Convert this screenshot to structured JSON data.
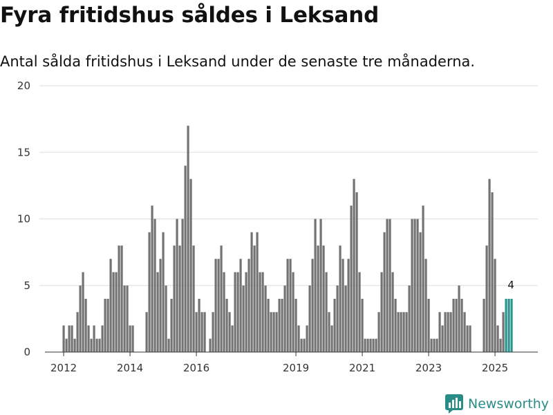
{
  "title": "Fyra fritidshus såldes i Leksand",
  "subtitle": "Antal sålda fritidshus i Leksand under de senaste tre månaderna.",
  "brand": "Newsworthy",
  "colors": {
    "bar": "#737373",
    "highlight": "#2a9590",
    "grid": "#dddddd",
    "brand": "#2a8c86"
  },
  "chart_data": {
    "type": "bar",
    "ylim": [
      0,
      20
    ],
    "yticks": [
      0,
      5,
      10,
      15,
      20
    ],
    "xticks": [
      "2012",
      "2014",
      "2016",
      "2019",
      "2021",
      "2023",
      "2025"
    ],
    "grid": true,
    "values": [
      2,
      1,
      2,
      2,
      1,
      3,
      5,
      6,
      4,
      2,
      1,
      2,
      1,
      1,
      2,
      4,
      4,
      7,
      6,
      6,
      8,
      8,
      5,
      5,
      2,
      2,
      0,
      0,
      0,
      0,
      3,
      9,
      11,
      10,
      6,
      7,
      9,
      5,
      1,
      4,
      8,
      10,
      8,
      10,
      14,
      17,
      13,
      8,
      3,
      4,
      3,
      3,
      0,
      1,
      3,
      7,
      7,
      8,
      6,
      4,
      3,
      2,
      6,
      6,
      7,
      5,
      6,
      7,
      9,
      8,
      9,
      6,
      6,
      5,
      4,
      3,
      3,
      3,
      4,
      4,
      5,
      7,
      7,
      6,
      4,
      2,
      1,
      1,
      2,
      5,
      7,
      10,
      8,
      10,
      8,
      6,
      3,
      2,
      4,
      5,
      8,
      7,
      5,
      7,
      11,
      13,
      12,
      6,
      4,
      1,
      1,
      1,
      1,
      1,
      3,
      6,
      9,
      10,
      10,
      6,
      4,
      3,
      3,
      3,
      3,
      5,
      10,
      10,
      10,
      9,
      11,
      7,
      4,
      1,
      1,
      1,
      3,
      2,
      3,
      3,
      3,
      4,
      4,
      5,
      4,
      3,
      2,
      2,
      0,
      0,
      0,
      0,
      4,
      8,
      13,
      12,
      7,
      2,
      1,
      3,
      4,
      4,
      4
    ],
    "highlight_last": 3,
    "last_label": "4"
  }
}
